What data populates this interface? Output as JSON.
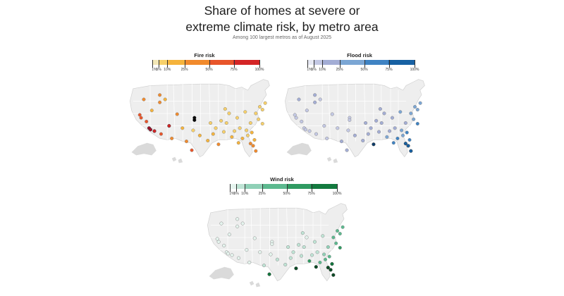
{
  "header": {
    "title_line1": "Share of homes at severe or",
    "title_line2": "extreme climate risk, by metro area",
    "subtitle": "Among 100 largest metros as of August 2025"
  },
  "legend_ticks": [
    "1%",
    "5%",
    "10%",
    "25%",
    "50%",
    "75%",
    "100%"
  ],
  "panels": [
    {
      "id": "fire",
      "title": "Fire risk",
      "colors": [
        "#f2e7b6",
        "#f7d06a",
        "#f5b33c",
        "#f18a2c",
        "#e8552a",
        "#d42526",
        "#a5102a"
      ],
      "points": [
        [
          0.08,
          0.23,
          3
        ],
        [
          0.2,
          0.17,
          3
        ],
        [
          0.2,
          0.27,
          3
        ],
        [
          0.24,
          0.23,
          2
        ],
        [
          0.14,
          0.38,
          2
        ],
        [
          0.05,
          0.44,
          4
        ],
        [
          0.06,
          0.48,
          4
        ],
        [
          0.1,
          0.53,
          4
        ],
        [
          0.12,
          0.62,
          6
        ],
        [
          0.13,
          0.64,
          6
        ],
        [
          0.16,
          0.66,
          5
        ],
        [
          0.21,
          0.7,
          4
        ],
        [
          0.27,
          0.59,
          5
        ],
        [
          0.29,
          0.76,
          3
        ],
        [
          0.33,
          0.43,
          3
        ],
        [
          0.46,
          0.48,
          7
        ],
        [
          0.46,
          0.51,
          7
        ],
        [
          0.37,
          0.62,
          2
        ],
        [
          0.45,
          0.65,
          1
        ],
        [
          0.4,
          0.8,
          3
        ],
        [
          0.44,
          0.92,
          4
        ],
        [
          0.5,
          0.72,
          2
        ],
        [
          0.56,
          0.79,
          2
        ],
        [
          0.62,
          0.62,
          1
        ],
        [
          0.6,
          0.7,
          2
        ],
        [
          0.7,
          0.55,
          1
        ],
        [
          0.68,
          0.67,
          1
        ],
        [
          0.76,
          0.66,
          1
        ],
        [
          0.8,
          0.62,
          1
        ],
        [
          0.72,
          0.42,
          1
        ],
        [
          0.78,
          0.48,
          1
        ],
        [
          0.84,
          0.4,
          1
        ],
        [
          0.88,
          0.55,
          1
        ],
        [
          0.92,
          0.42,
          1
        ],
        [
          0.95,
          0.33,
          1
        ],
        [
          0.97,
          0.37,
          1
        ],
        [
          0.85,
          0.65,
          1
        ],
        [
          0.82,
          0.76,
          2
        ],
        [
          0.86,
          0.72,
          1
        ],
        [
          0.89,
          0.68,
          2
        ],
        [
          0.79,
          0.82,
          2
        ],
        [
          0.88,
          0.83,
          3
        ],
        [
          0.9,
          0.86,
          3
        ],
        [
          0.92,
          0.93,
          3
        ],
        [
          0.91,
          0.78,
          2
        ],
        [
          0.64,
          0.84,
          3
        ],
        [
          0.69,
          0.36,
          1
        ],
        [
          0.99,
          0.28,
          1
        ],
        [
          0.94,
          0.5,
          1
        ],
        [
          0.58,
          0.55,
          1
        ],
        [
          0.74,
          0.74,
          2
        ],
        [
          0.97,
          0.56,
          1
        ],
        [
          0.66,
          0.52,
          1
        ]
      ]
    },
    {
      "id": "flood",
      "title": "Flood risk",
      "colors": [
        "#e6e8f3",
        "#c3c8e4",
        "#a3add5",
        "#7ba6d4",
        "#3f83c3",
        "#1761a3",
        "#0d3d6b"
      ],
      "points": [
        [
          0.08,
          0.23,
          2
        ],
        [
          0.2,
          0.17,
          2
        ],
        [
          0.2,
          0.27,
          2
        ],
        [
          0.24,
          0.23,
          1
        ],
        [
          0.14,
          0.38,
          1
        ],
        [
          0.05,
          0.44,
          1
        ],
        [
          0.06,
          0.48,
          1
        ],
        [
          0.1,
          0.53,
          1
        ],
        [
          0.12,
          0.62,
          1
        ],
        [
          0.13,
          0.64,
          1
        ],
        [
          0.16,
          0.66,
          1
        ],
        [
          0.21,
          0.7,
          1
        ],
        [
          0.27,
          0.59,
          1
        ],
        [
          0.29,
          0.76,
          1
        ],
        [
          0.33,
          0.43,
          1
        ],
        [
          0.46,
          0.48,
          1
        ],
        [
          0.46,
          0.51,
          1
        ],
        [
          0.37,
          0.62,
          1
        ],
        [
          0.45,
          0.65,
          1
        ],
        [
          0.4,
          0.8,
          2
        ],
        [
          0.44,
          0.92,
          2
        ],
        [
          0.5,
          0.72,
          2
        ],
        [
          0.56,
          0.79,
          2
        ],
        [
          0.62,
          0.62,
          2
        ],
        [
          0.6,
          0.7,
          2
        ],
        [
          0.7,
          0.55,
          2
        ],
        [
          0.68,
          0.67,
          2
        ],
        [
          0.76,
          0.66,
          2
        ],
        [
          0.8,
          0.62,
          2
        ],
        [
          0.72,
          0.42,
          2
        ],
        [
          0.78,
          0.48,
          2
        ],
        [
          0.84,
          0.4,
          3
        ],
        [
          0.88,
          0.55,
          2
        ],
        [
          0.92,
          0.42,
          3
        ],
        [
          0.95,
          0.33,
          3
        ],
        [
          0.97,
          0.37,
          3
        ],
        [
          0.85,
          0.65,
          3
        ],
        [
          0.82,
          0.76,
          4
        ],
        [
          0.86,
          0.72,
          3
        ],
        [
          0.89,
          0.68,
          4
        ],
        [
          0.79,
          0.82,
          4
        ],
        [
          0.88,
          0.83,
          5
        ],
        [
          0.9,
          0.86,
          5
        ],
        [
          0.92,
          0.93,
          5
        ],
        [
          0.91,
          0.78,
          4
        ],
        [
          0.64,
          0.84,
          6
        ],
        [
          0.69,
          0.36,
          2
        ],
        [
          0.99,
          0.28,
          3
        ],
        [
          0.94,
          0.5,
          3
        ],
        [
          0.58,
          0.55,
          2
        ],
        [
          0.74,
          0.74,
          3
        ],
        [
          0.97,
          0.56,
          4
        ],
        [
          0.66,
          0.52,
          2
        ]
      ]
    },
    {
      "id": "wind",
      "title": "Wind risk",
      "colors": [
        "#e5f4ee",
        "#bfe4d5",
        "#8fd0b6",
        "#5cb98f",
        "#2f9a61",
        "#137a3f",
        "#0b4d26"
      ],
      "points": [
        [
          0.08,
          0.23,
          0
        ],
        [
          0.2,
          0.17,
          0
        ],
        [
          0.2,
          0.27,
          0
        ],
        [
          0.24,
          0.23,
          0
        ],
        [
          0.14,
          0.38,
          0
        ],
        [
          0.05,
          0.44,
          0
        ],
        [
          0.06,
          0.48,
          0
        ],
        [
          0.1,
          0.53,
          0
        ],
        [
          0.12,
          0.62,
          0
        ],
        [
          0.13,
          0.64,
          0
        ],
        [
          0.16,
          0.66,
          0
        ],
        [
          0.21,
          0.7,
          0
        ],
        [
          0.27,
          0.59,
          0
        ],
        [
          0.29,
          0.76,
          0
        ],
        [
          0.33,
          0.43,
          0
        ],
        [
          0.46,
          0.48,
          0
        ],
        [
          0.46,
          0.51,
          0
        ],
        [
          0.37,
          0.62,
          0
        ],
        [
          0.45,
          0.65,
          0
        ],
        [
          0.4,
          0.8,
          1
        ],
        [
          0.44,
          0.92,
          5
        ],
        [
          0.5,
          0.72,
          1
        ],
        [
          0.56,
          0.79,
          1
        ],
        [
          0.62,
          0.62,
          1
        ],
        [
          0.6,
          0.7,
          1
        ],
        [
          0.7,
          0.55,
          1
        ],
        [
          0.68,
          0.67,
          1
        ],
        [
          0.76,
          0.66,
          1
        ],
        [
          0.8,
          0.62,
          1
        ],
        [
          0.72,
          0.42,
          0
        ],
        [
          0.78,
          0.48,
          1
        ],
        [
          0.84,
          0.4,
          1
        ],
        [
          0.88,
          0.55,
          2
        ],
        [
          0.92,
          0.42,
          3
        ],
        [
          0.95,
          0.33,
          3
        ],
        [
          0.97,
          0.37,
          3
        ],
        [
          0.85,
          0.65,
          2
        ],
        [
          0.82,
          0.76,
          3
        ],
        [
          0.86,
          0.72,
          3
        ],
        [
          0.89,
          0.68,
          3
        ],
        [
          0.79,
          0.82,
          6
        ],
        [
          0.88,
          0.83,
          6
        ],
        [
          0.9,
          0.86,
          6
        ],
        [
          0.92,
          0.93,
          6
        ],
        [
          0.91,
          0.78,
          5
        ],
        [
          0.64,
          0.84,
          6
        ],
        [
          0.69,
          0.36,
          1
        ],
        [
          0.99,
          0.28,
          3
        ],
        [
          0.94,
          0.5,
          3
        ],
        [
          0.58,
          0.55,
          1
        ],
        [
          0.74,
          0.74,
          4
        ],
        [
          0.97,
          0.56,
          4
        ],
        [
          0.66,
          0.52,
          1
        ]
      ]
    }
  ]
}
